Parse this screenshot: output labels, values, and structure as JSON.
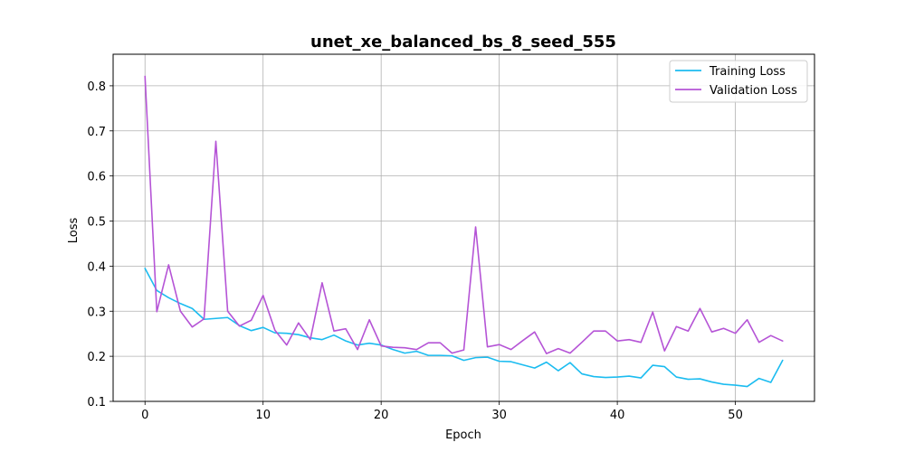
{
  "chart_data": {
    "type": "line",
    "title": "unet_xe_balanced_bs_8_seed_555",
    "xlabel": "Epoch",
    "ylabel": "Loss",
    "xlim": [
      -2.7,
      56.7
    ],
    "ylim": [
      0.1,
      0.87
    ],
    "xticks": [
      0,
      10,
      20,
      30,
      40,
      50
    ],
    "yticks": [
      0.1,
      0.2,
      0.3,
      0.4,
      0.5,
      0.6,
      0.7,
      0.8
    ],
    "grid": true,
    "legend_position": "top-right",
    "x": [
      0,
      1,
      2,
      3,
      4,
      5,
      6,
      7,
      8,
      9,
      10,
      11,
      12,
      13,
      14,
      15,
      16,
      17,
      18,
      19,
      20,
      21,
      22,
      23,
      24,
      25,
      26,
      27,
      28,
      29,
      30,
      31,
      32,
      33,
      34,
      35,
      36,
      37,
      38,
      39,
      40,
      41,
      42,
      43,
      44,
      45,
      46,
      47,
      48,
      49,
      50,
      51,
      52,
      53,
      54
    ],
    "series": [
      {
        "name": "Training Loss",
        "color": "#1bbcf0",
        "values": [
          0.395,
          0.346,
          0.33,
          0.317,
          0.306,
          0.282,
          0.284,
          0.286,
          0.268,
          0.257,
          0.264,
          0.252,
          0.251,
          0.248,
          0.241,
          0.237,
          0.247,
          0.234,
          0.225,
          0.229,
          0.225,
          0.215,
          0.207,
          0.211,
          0.202,
          0.202,
          0.201,
          0.191,
          0.197,
          0.198,
          0.189,
          0.188,
          0.181,
          0.174,
          0.187,
          0.168,
          0.186,
          0.161,
          0.155,
          0.153,
          0.154,
          0.156,
          0.152,
          0.18,
          0.177,
          0.154,
          0.149,
          0.15,
          0.143,
          0.138,
          0.136,
          0.133,
          0.151,
          0.142,
          0.191
        ]
      },
      {
        "name": "Validation Loss",
        "color": "#b554d6",
        "values": [
          0.821,
          0.299,
          0.403,
          0.3,
          0.265,
          0.283,
          0.677,
          0.3,
          0.267,
          0.28,
          0.335,
          0.258,
          0.225,
          0.274,
          0.237,
          0.363,
          0.256,
          0.261,
          0.215,
          0.281,
          0.223,
          0.22,
          0.219,
          0.215,
          0.23,
          0.23,
          0.207,
          0.214,
          0.487,
          0.221,
          0.226,
          0.215,
          0.235,
          0.254,
          0.206,
          0.217,
          0.207,
          0.231,
          0.256,
          0.256,
          0.234,
          0.237,
          0.231,
          0.298,
          0.212,
          0.266,
          0.256,
          0.306,
          0.254,
          0.262,
          0.251,
          0.281,
          0.231,
          0.246,
          0.234
        ]
      }
    ]
  }
}
